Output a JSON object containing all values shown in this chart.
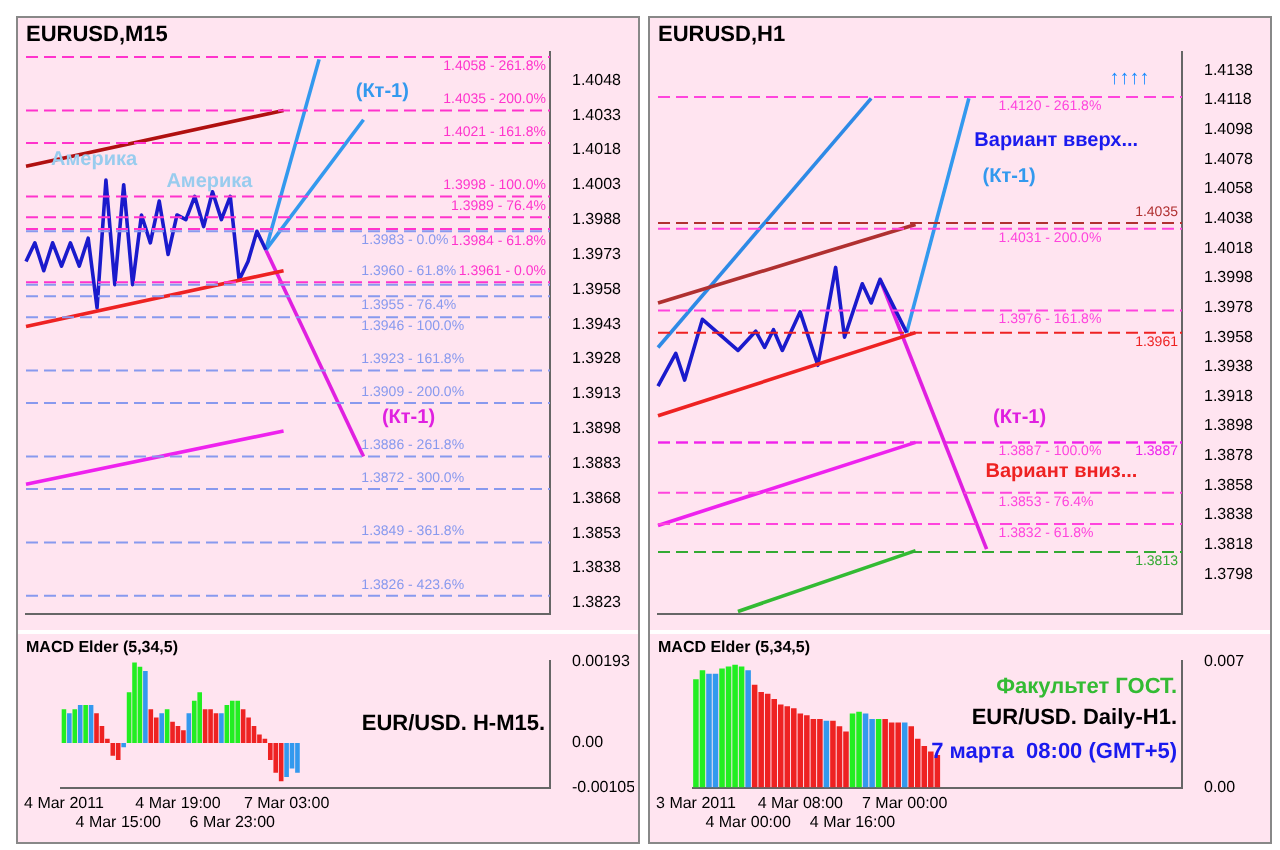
{
  "chart_data": [
    {
      "type": "line",
      "title": "EURUSD,M15",
      "marker": "none",
      "line_style": "solid",
      "tick_labels": "y",
      "categories": [
        null,
        null,
        null,
        null,
        null,
        null,
        null,
        null,
        null,
        null,
        null,
        null,
        null,
        null,
        null,
        null,
        null,
        null,
        null,
        null,
        null,
        null,
        null,
        null,
        null,
        null,
        null,
        null,
        null,
        null,
        null,
        null,
        null,
        null,
        null,
        null,
        null,
        null,
        null,
        null,
        null,
        null,
        null,
        null,
        null,
        null,
        null,
        null,
        null,
        null,
        null,
        null,
        null,
        null,
        null,
        null,
        null,
        null,
        null,
        null
      ],
      "ylim": [
        1.3818,
        1.406
      ],
      "yticks": [
        1.4048,
        1.4033,
        1.4018,
        1.4003,
        1.3988,
        1.3973,
        1.3958,
        1.3943,
        1.3928,
        1.3913,
        1.3898,
        1.3883,
        1.3868,
        1.3853,
        1.3838,
        1.3823
      ],
      "series": [
        {
          "color": "#b01010",
          "values": [
            1.4011,
            null,
            null,
            null,
            null,
            null,
            null,
            null,
            null,
            null,
            null,
            null,
            null,
            null,
            null,
            null,
            null,
            null,
            null,
            null,
            null,
            null,
            null,
            null,
            null,
            null,
            null,
            null,
            null,
            1.4035,
            null,
            null,
            null,
            null,
            null,
            null,
            null,
            null,
            null,
            null,
            null,
            null,
            null,
            null,
            null,
            null,
            null,
            null,
            null,
            null,
            null,
            null,
            null,
            null,
            null,
            null,
            null,
            null,
            null,
            null
          ]
        },
        {
          "color": "#ee2222",
          "values": [
            1.3942,
            null,
            null,
            null,
            null,
            null,
            null,
            null,
            null,
            null,
            null,
            null,
            null,
            null,
            null,
            null,
            null,
            null,
            null,
            null,
            null,
            null,
            null,
            null,
            null,
            null,
            null,
            null,
            null,
            1.3966,
            null,
            null,
            null,
            null,
            null,
            null,
            null,
            null,
            null,
            null,
            null,
            null,
            null,
            null,
            null,
            null,
            null,
            null,
            null,
            null,
            null,
            null,
            null,
            null,
            null,
            null,
            null,
            null,
            null,
            null
          ]
        },
        {
          "color": "#ee22ee",
          "values": [
            1.3874,
            null,
            null,
            null,
            null,
            null,
            null,
            null,
            null,
            null,
            null,
            null,
            null,
            null,
            null,
            null,
            null,
            null,
            null,
            null,
            null,
            null,
            null,
            null,
            null,
            null,
            null,
            null,
            null,
            1.3897,
            null,
            null,
            null,
            null,
            null,
            null,
            null,
            null,
            null,
            null,
            null,
            null,
            null,
            null,
            null,
            null,
            null,
            null,
            null,
            null,
            null,
            null,
            null,
            null,
            null,
            null,
            null,
            null,
            null,
            null
          ]
        },
        {
          "color": "#1a1acc",
          "values": [
            1.397,
            1.3978,
            1.3966,
            1.3978,
            1.3968,
            1.3978,
            1.3968,
            1.398,
            1.395,
            1.4005,
            1.396,
            1.4003,
            1.396,
            1.399,
            1.3978,
            1.3996,
            1.3973,
            1.399,
            1.3988,
            1.3998,
            1.3985,
            1.4,
            1.3988,
            1.3998,
            1.3962,
            1.397,
            1.3983,
            1.3975,
            null,
            null,
            null,
            null,
            null,
            null,
            null,
            null,
            null,
            null,
            null,
            null,
            null,
            null,
            null,
            null,
            null,
            null,
            null,
            null,
            null,
            null,
            null,
            null,
            null,
            null,
            null,
            null,
            null,
            null,
            null,
            null
          ]
        },
        {
          "color": "#3399ee",
          "values": [
            null,
            null,
            null,
            null,
            null,
            null,
            null,
            null,
            null,
            null,
            null,
            null,
            null,
            null,
            null,
            null,
            null,
            null,
            null,
            null,
            null,
            null,
            null,
            null,
            null,
            null,
            null,
            1.3975,
            null,
            null,
            null,
            null,
            null,
            1.4057,
            null,
            null,
            null,
            null,
            null,
            null,
            null,
            null,
            null,
            null,
            null,
            null,
            null,
            null,
            null,
            null,
            null,
            null,
            null,
            null,
            null,
            null,
            null,
            null,
            null,
            null
          ]
        },
        {
          "color": "#3399ee",
          "values": [
            null,
            null,
            null,
            null,
            null,
            null,
            null,
            null,
            null,
            null,
            null,
            null,
            null,
            null,
            null,
            null,
            null,
            null,
            null,
            null,
            null,
            null,
            null,
            null,
            null,
            null,
            null,
            1.3975,
            null,
            null,
            null,
            null,
            null,
            null,
            null,
            null,
            null,
            null,
            1.4031,
            null,
            null,
            null,
            null,
            null,
            null,
            null,
            null,
            null,
            null,
            null,
            null,
            null,
            null,
            null,
            null,
            null,
            null,
            null,
            null,
            null
          ]
        },
        {
          "color": "#e020e0",
          "values": [
            null,
            null,
            null,
            null,
            null,
            null,
            null,
            null,
            null,
            null,
            null,
            null,
            null,
            null,
            null,
            null,
            null,
            null,
            null,
            null,
            null,
            null,
            null,
            null,
            null,
            null,
            null,
            1.3975,
            null,
            null,
            null,
            null,
            null,
            null,
            null,
            null,
            null,
            null,
            1.3886,
            null,
            null,
            null,
            null,
            null,
            null,
            null,
            null,
            null,
            null,
            null,
            null,
            null,
            null,
            null,
            null,
            null,
            null,
            null,
            null,
            null
          ]
        }
      ],
      "ref_lines": [
        {
          "axis": "y",
          "value": 1.4058,
          "label": "1.4058 - 261.8%",
          "color": "#ff33cc",
          "line_style": "dashed"
        },
        {
          "axis": "y",
          "value": 1.4035,
          "label": "1.4035 - 200.0%",
          "color": "#ff33cc",
          "line_style": "dashed"
        },
        {
          "axis": "y",
          "value": 1.4021,
          "label": "1.4021 - 161.8%",
          "color": "#ff33cc",
          "line_style": "dashed"
        },
        {
          "axis": "y",
          "value": 1.3998,
          "label": "1.3998 - 100.0%",
          "color": "#ff33cc",
          "line_style": "dashed"
        },
        {
          "axis": "y",
          "value": 1.3989,
          "label": "1.3989 - 76.4%",
          "color": "#ff33cc",
          "line_style": "dashed"
        },
        {
          "axis": "y",
          "value": 1.3984,
          "label": "1.3984 - 61.8%",
          "color": "#ff33cc",
          "line_style": "dashed"
        },
        {
          "axis": "y",
          "value": 1.3961,
          "label": "1.3961 - 0.0%",
          "color": "#ff33cc",
          "line_style": "dashed"
        },
        {
          "axis": "y",
          "value": 1.3983,
          "label": "1.3983 - 0.0%",
          "color": "#8899ee",
          "line_style": "dashed"
        },
        {
          "axis": "y",
          "value": 1.396,
          "label": "1.3960 - 61.8%",
          "color": "#8899ee",
          "line_style": "dashed"
        },
        {
          "axis": "y",
          "value": 1.3955,
          "label": "1.3955 - 76.4%",
          "color": "#8899ee",
          "line_style": "dashed"
        },
        {
          "axis": "y",
          "value": 1.3946,
          "label": "1.3946 - 100.0%",
          "color": "#8899ee",
          "line_style": "dashed"
        },
        {
          "axis": "y",
          "value": 1.3923,
          "label": "1.3923 - 161.8%",
          "color": "#8899ee",
          "line_style": "dashed"
        },
        {
          "axis": "y",
          "value": 1.3909,
          "label": "1.3909 - 200.0%",
          "color": "#8899ee",
          "line_style": "dashed"
        },
        {
          "axis": "y",
          "value": 1.3886,
          "label": "1.3886 - 261.8%",
          "color": "#8899ee",
          "line_style": "dashed"
        },
        {
          "axis": "y",
          "value": 1.3872,
          "label": "1.3872 - 300.0%",
          "color": "#8899ee",
          "line_style": "dashed"
        },
        {
          "axis": "y",
          "value": 1.3849,
          "label": "1.3849 - 361.8%",
          "color": "#8899ee",
          "line_style": "dashed"
        },
        {
          "axis": "y",
          "value": 1.3826,
          "label": "1.3826 - 423.6%",
          "color": "#8899ee",
          "line_style": "dashed"
        }
      ],
      "annotations": [
        "(Кт-1)",
        "(Кт-1)",
        "Америка",
        "Америка"
      ]
    },
    {
      "type": "bar",
      "title": "MACD Elder (5,34,5)",
      "categories": [
        "4 Mar 2011",
        null,
        null,
        null,
        null,
        null,
        null,
        null,
        null,
        null,
        "4 Mar 15:00",
        null,
        null,
        null,
        null,
        null,
        null,
        null,
        null,
        null,
        null,
        "4 Mar 19:00",
        null,
        null,
        null,
        null,
        null,
        null,
        null,
        null,
        null,
        "6 Mar 23:00",
        null,
        null,
        null,
        null,
        null,
        null,
        null,
        null,
        null,
        "7 Mar 03:00",
        null,
        null,
        null,
        null,
        null,
        null,
        null,
        null,
        null,
        null,
        null,
        null,
        null,
        null,
        null,
        null,
        null,
        null,
        null,
        null,
        null,
        null,
        null,
        null,
        null,
        null,
        null,
        null,
        null,
        null,
        null,
        null,
        null,
        null,
        null,
        null,
        null,
        null,
        null,
        null,
        null,
        null,
        null,
        null,
        null,
        null,
        null,
        null
      ],
      "values": [
        0.0008,
        0.0007,
        0.0008,
        0.0009,
        0.0009,
        0.0009,
        0.0007,
        0.0004,
        0.0001,
        -0.0003,
        -0.0004,
        -0.0001,
        0.0012,
        0.0019,
        0.0018,
        0.0017,
        0.0008,
        0.0006,
        0.0007,
        0.0008,
        0.0005,
        0.0004,
        0.0003,
        0.0007,
        0.001,
        0.0012,
        0.0008,
        0.0008,
        0.0007,
        0.0007,
        0.0009,
        0.001,
        0.001,
        0.0008,
        0.0006,
        0.0004,
        0.0002,
        0.0001,
        -0.0004,
        -0.0007,
        -0.0009,
        -0.0008,
        -0.0006,
        -0.0007,
        null,
        null,
        null,
        null,
        null,
        null,
        null,
        null,
        null,
        null,
        null,
        null,
        null,
        null,
        null,
        null,
        null,
        null,
        null,
        null,
        null,
        null,
        null,
        null,
        null,
        null,
        null,
        null,
        null,
        null,
        null,
        null,
        null,
        null,
        null,
        null,
        null,
        null,
        null,
        null,
        null,
        null,
        null,
        null,
        null,
        null
      ],
      "colors": [
        "#22ee22",
        "#3399ee",
        "#22ee22",
        "#3399ee",
        "#22ee22",
        "#3399ee",
        "#ee2222",
        "#ee2222",
        "#ee2222",
        "#ee2222",
        "#ee2222",
        "#3399ee",
        "#22ee22",
        "#22ee22",
        "#22ee22",
        "#3399ee",
        "#ee2222",
        "#ee2222",
        "#3399ee",
        "#22ee22",
        "#ee2222",
        "#ee2222",
        "#ee2222",
        "#3399ee",
        "#22ee22",
        "#22ee22",
        "#ee2222",
        "#ee2222",
        "#ee2222",
        "#3399ee",
        "#22ee22",
        "#22ee22",
        "#22ee22",
        "#ee2222",
        "#ee2222",
        "#ee2222",
        "#ee2222",
        "#ee2222",
        "#ee2222",
        "#ee2222",
        "#ee2222",
        "#3399ee",
        "#3399ee",
        "#3399ee",
        null,
        null,
        null,
        null,
        null,
        null,
        null,
        null,
        null,
        null,
        null,
        null,
        null,
        null,
        null,
        null,
        null,
        null,
        null,
        null,
        null,
        null,
        null,
        null,
        null,
        null,
        null,
        null,
        null,
        null,
        null,
        null,
        null,
        null,
        null,
        null,
        null,
        null,
        null,
        null,
        null,
        null,
        null,
        null,
        null,
        null
      ],
      "ylim": [
        -0.00105,
        0.00193
      ],
      "yticks": [
        0.00193,
        {
          "value": 0,
          "label": "0.00"
        },
        -0.00105
      ],
      "annotations": [
        "EUR/USD. H-M15."
      ]
    },
    {
      "type": "line",
      "title": "EURUSD,H1",
      "marker": "none",
      "line_style": "solid",
      "tick_labels": "y",
      "categories": [
        null,
        null,
        null,
        null,
        null,
        null,
        null,
        null,
        null,
        null,
        null,
        null,
        null,
        null,
        null,
        null,
        null,
        null,
        null,
        null,
        null,
        null,
        null,
        null,
        null,
        null,
        null,
        null,
        null,
        null,
        null,
        null,
        null,
        null,
        null,
        null,
        null,
        null,
        null,
        null,
        null,
        null,
        null,
        null,
        null,
        null,
        null,
        null,
        null,
        null,
        null,
        null,
        null,
        null,
        null,
        null,
        null,
        null,
        null,
        null
      ],
      "ylim": [
        1.3771,
        1.415
      ],
      "yticks": [
        1.4138,
        1.4118,
        1.4098,
        1.4078,
        1.4058,
        1.4038,
        1.4018,
        1.3998,
        1.3978,
        1.3958,
        1.3938,
        1.3918,
        1.3898,
        1.3878,
        1.3858,
        1.3838,
        1.3818,
        1.3798
      ],
      "series": [
        {
          "color": "#b03030",
          "values": [
            1.3981,
            null,
            null,
            null,
            null,
            null,
            null,
            null,
            null,
            null,
            null,
            null,
            null,
            null,
            null,
            null,
            null,
            null,
            null,
            null,
            null,
            null,
            null,
            null,
            null,
            null,
            null,
            null,
            null,
            1.4034,
            null,
            null,
            null,
            null,
            null,
            null,
            null,
            null,
            null,
            null,
            null,
            null,
            null,
            null,
            null,
            null,
            null,
            null,
            null,
            null,
            null,
            null,
            null,
            null,
            null,
            null,
            null,
            null,
            null,
            null
          ]
        },
        {
          "color": "#ee2222",
          "values": [
            1.3905,
            null,
            null,
            null,
            null,
            null,
            null,
            null,
            null,
            null,
            null,
            null,
            null,
            null,
            null,
            null,
            null,
            null,
            null,
            null,
            null,
            null,
            null,
            null,
            null,
            null,
            null,
            null,
            null,
            1.3961,
            null,
            null,
            null,
            null,
            null,
            null,
            null,
            null,
            null,
            null,
            null,
            null,
            null,
            null,
            null,
            null,
            null,
            null,
            null,
            null,
            null,
            null,
            null,
            null,
            null,
            null,
            null,
            null,
            null,
            null
          ]
        },
        {
          "color": "#ee22ee",
          "values": [
            1.3831,
            null,
            null,
            null,
            null,
            null,
            null,
            null,
            null,
            null,
            null,
            null,
            null,
            null,
            null,
            null,
            null,
            null,
            null,
            null,
            null,
            null,
            null,
            null,
            null,
            null,
            null,
            null,
            null,
            1.3887,
            null,
            null,
            null,
            null,
            null,
            null,
            null,
            null,
            null,
            null,
            null,
            null,
            null,
            null,
            null,
            null,
            null,
            null,
            null,
            null,
            null,
            null,
            null,
            null,
            null,
            null,
            null,
            null,
            null,
            null
          ]
        },
        {
          "color": "#33bb33",
          "values": [
            null,
            null,
            null,
            null,
            null,
            null,
            null,
            null,
            null,
            1.3773,
            null,
            null,
            null,
            null,
            null,
            null,
            null,
            null,
            null,
            null,
            null,
            null,
            null,
            null,
            null,
            null,
            null,
            null,
            null,
            1.3814,
            null,
            null,
            null,
            null,
            null,
            null,
            null,
            null,
            null,
            null,
            null,
            null,
            null,
            null,
            null,
            null,
            null,
            null,
            null,
            null,
            null,
            null,
            null,
            null,
            null,
            null,
            null,
            null,
            null,
            null
          ]
        },
        {
          "color": "#2e8ae6",
          "values": [
            1.3951,
            null,
            null,
            null,
            null,
            null,
            null,
            null,
            null,
            null,
            null,
            null,
            null,
            null,
            null,
            null,
            null,
            null,
            null,
            null,
            null,
            null,
            null,
            null,
            1.4119,
            null,
            null,
            null,
            null,
            null,
            null,
            null,
            null,
            null,
            null,
            null,
            null,
            null,
            null,
            null,
            null,
            null,
            null,
            null,
            null,
            null,
            null,
            null,
            null,
            null,
            null,
            null,
            null,
            null,
            null,
            null,
            null,
            null,
            null,
            null
          ]
        },
        {
          "color": "#1a1acc",
          "values": [
            1.3925,
            null,
            1.3947,
            1.3929,
            null,
            1.397,
            null,
            null,
            null,
            1.3949,
            null,
            1.3962,
            1.3951,
            1.3963,
            1.3949,
            null,
            1.3975,
            null,
            1.3939,
            null,
            1.4005,
            1.3958,
            null,
            1.3994,
            1.3981,
            1.3997,
            null,
            null,
            1.3961,
            null,
            null,
            null,
            null,
            null,
            null,
            null,
            null,
            null,
            null,
            null,
            null,
            null,
            null,
            null,
            null,
            null,
            null,
            null,
            null,
            null,
            null,
            null,
            null,
            null,
            null,
            null,
            null,
            null,
            null,
            null
          ]
        },
        {
          "color": "#3399ee",
          "values": [
            null,
            null,
            null,
            null,
            null,
            null,
            null,
            null,
            null,
            null,
            null,
            null,
            null,
            null,
            null,
            null,
            null,
            null,
            null,
            null,
            null,
            null,
            null,
            null,
            null,
            null,
            null,
            null,
            1.3961,
            null,
            null,
            null,
            null,
            null,
            null,
            1.4119,
            null,
            null,
            null,
            null,
            null,
            null,
            null,
            null,
            null,
            null,
            null,
            null,
            null,
            null,
            null,
            null,
            null,
            null,
            null,
            null,
            null,
            null,
            null,
            null
          ]
        },
        {
          "color": "#e020e0",
          "values": [
            null,
            null,
            null,
            null,
            null,
            null,
            null,
            null,
            null,
            null,
            null,
            null,
            null,
            null,
            null,
            null,
            null,
            null,
            null,
            null,
            null,
            null,
            null,
            null,
            null,
            1.3997,
            null,
            null,
            null,
            null,
            null,
            null,
            null,
            null,
            null,
            null,
            null,
            1.3815,
            null,
            null,
            null,
            null,
            null,
            null,
            null,
            null,
            null,
            null,
            null,
            null,
            null,
            null,
            null,
            null,
            null,
            null,
            null,
            null,
            null,
            null
          ]
        }
      ],
      "ref_lines": [
        {
          "axis": "y",
          "value": 1.412,
          "label": "1.4120 - 261.8%",
          "color": "#ff44dd",
          "line_style": "dashed"
        },
        {
          "axis": "y",
          "value": 1.4031,
          "label": "1.4031 - 200.0%",
          "color": "#ff44dd",
          "line_style": "dashed"
        },
        {
          "axis": "y",
          "value": 1.3976,
          "label": "1.3976 - 161.8%",
          "color": "#ff44dd",
          "line_style": "dashed"
        },
        {
          "axis": "y",
          "value": 1.3887,
          "label": "1.3887 - 100.0%",
          "color": "#ff44dd",
          "line_style": "dashed"
        },
        {
          "axis": "y",
          "value": 1.3853,
          "label": "1.3853 - 76.4%",
          "color": "#ff44dd",
          "line_style": "dashed"
        },
        {
          "axis": "y",
          "value": 1.3832,
          "label": "1.3832 - 61.8%",
          "color": "#ff44dd",
          "line_style": "dashed"
        },
        {
          "axis": "y",
          "value": 1.4035,
          "label": "1.4035",
          "color": "#b03030",
          "line_style": "dashed"
        },
        {
          "axis": "y",
          "value": 1.3961,
          "label": "1.3961",
          "color": "#ee2222",
          "line_style": "dashed"
        },
        {
          "axis": "y",
          "value": 1.3887,
          "label": "1.3887",
          "color": "#ee22ee",
          "line_style": "dashed"
        },
        {
          "axis": "y",
          "value": 1.3813,
          "label": "1.3813",
          "color": "#33aa33",
          "line_style": "dashed"
        }
      ],
      "annotations": [
        "Вариант вверх...",
        "(Кт-1)",
        "(Кт-1)",
        "Вариант вниз...",
        "↑↑↑↑"
      ]
    },
    {
      "type": "bar",
      "title": "MACD Elder (5,34,5)",
      "categories": [
        "3 Mar 2011",
        null,
        null,
        null,
        null,
        null,
        null,
        null,
        "4 Mar 00:00",
        null,
        null,
        null,
        null,
        null,
        null,
        null,
        "4 Mar 08:00",
        null,
        null,
        null,
        null,
        null,
        null,
        null,
        "4 Mar 16:00",
        null,
        null,
        null,
        null,
        null,
        null,
        null,
        "7 Mar 00:00",
        null,
        null,
        null,
        null,
        null,
        null,
        null,
        null,
        null,
        null,
        null,
        null,
        null,
        null,
        null,
        null,
        null,
        null,
        null,
        null,
        null,
        null,
        null,
        null,
        null,
        null,
        null,
        null,
        null,
        null,
        null,
        null,
        null,
        null,
        null,
        null,
        null,
        null,
        null,
        null,
        null,
        null
      ],
      "values": [
        0.006,
        0.0065,
        0.0063,
        0.0063,
        0.0066,
        0.0067,
        0.0068,
        0.0067,
        0.0065,
        0.0057,
        0.0053,
        0.0052,
        0.0049,
        0.0046,
        0.0045,
        0.0044,
        0.0041,
        0.004,
        0.0038,
        0.0038,
        0.0037,
        0.0037,
        0.0034,
        0.0031,
        0.0041,
        0.0042,
        0.0041,
        0.0038,
        0.0038,
        0.0038,
        0.0036,
        0.0036,
        0.0036,
        0.0034,
        0.0027,
        0.0023,
        0.002,
        0.0018,
        null,
        null,
        null,
        null,
        null,
        null,
        null,
        null,
        null,
        null,
        null,
        null,
        null,
        null,
        null,
        null,
        null,
        null,
        null,
        null,
        null,
        null,
        null,
        null,
        null,
        null,
        null,
        null,
        null,
        null,
        null,
        null,
        null,
        null,
        null,
        null,
        null
      ],
      "colors": [
        "#22ee22",
        "#22ee22",
        "#3399ee",
        "#3399ee",
        "#22ee22",
        "#22ee22",
        "#22ee22",
        "#22ee22",
        "#3399ee",
        "#ee2222",
        "#ee2222",
        "#ee2222",
        "#ee2222",
        "#ee2222",
        "#ee2222",
        "#ee2222",
        "#ee2222",
        "#ee2222",
        "#ee2222",
        "#ee2222",
        "#3399ee",
        "#ee2222",
        "#ee2222",
        "#ee2222",
        "#22ee22",
        "#22ee22",
        "#3399ee",
        "#3399ee",
        "#22ee22",
        "#ee2222",
        "#ee2222",
        "#ee2222",
        "#3399ee",
        "#ee2222",
        "#ee2222",
        "#ee2222",
        "#ee2222",
        "#ee2222",
        null,
        null,
        null,
        null,
        null,
        null,
        null,
        null,
        null,
        null,
        null,
        null,
        null,
        null,
        null,
        null,
        null,
        null,
        null,
        null,
        null,
        null,
        null,
        null,
        null,
        null,
        null,
        null,
        null,
        null,
        null,
        null,
        null,
        null,
        null,
        null,
        null
      ],
      "ylim": [
        0,
        0.007
      ],
      "yticks": [
        0.007,
        {
          "value": 0,
          "label": "0.00"
        }
      ],
      "annotations": [
        "Факультет ГОСТ.",
        "EUR/USD. Daily-H1.",
        "7 марта  08:00 (GMT+5)"
      ]
    }
  ]
}
